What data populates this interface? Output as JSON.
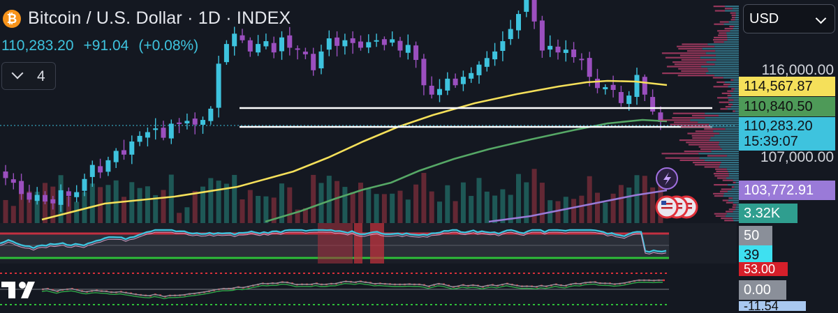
{
  "header": {
    "title": "Bitcoin / U.S. Dollar · 1D · INDEX",
    "last_price": "110,283.20",
    "change": "+91.04",
    "change_pct": "(+0.08%)",
    "indicators_count": "4"
  },
  "toolbar": {
    "currency": "USD"
  },
  "colors": {
    "bg": "#141821",
    "up": "#26a69a",
    "down": "#8e44ad",
    "candle_up": "#3ec3de",
    "candle_down": "#9b4fbf",
    "ma_fast": "#f5e05a",
    "ma_mid": "#56a866",
    "ma_slow": "#9a7ad8",
    "rsi_line": "#3ec3de",
    "accent_red": "#e0303a"
  },
  "price_axis": {
    "ticks": [
      "116,000.00",
      "107,000.00",
      "103,772.91"
    ],
    "badges": {
      "ma_fast": "114,567.87",
      "ma_mid": "110,840.50",
      "last": "110,283.20",
      "countdown": "15:39:07",
      "ma_slow": "103,772.91",
      "volume": "3.32K"
    }
  },
  "rsi_axis": {
    "upper": "50",
    "value": "39"
  },
  "macd_axis": {
    "upper": "53.00",
    "zero": "0.00",
    "lower": "-11.54"
  },
  "chart_data": {
    "type": "candlestick",
    "title": "Bitcoin / U.S. Dollar · 1D · INDEX",
    "y_axis_ticks": [
      116000,
      107000
    ],
    "horizontal_lines": [
      111380,
      110350
    ],
    "moving_averages": [
      {
        "name": "ma_fast",
        "last": 114567.87
      },
      {
        "name": "ma_mid",
        "last": 110840.5
      },
      {
        "name": "ma_slow",
        "last": 103772.91
      }
    ],
    "last_volume": "3.32K",
    "closes": [
      104300,
      103800,
      102600,
      102000,
      102500,
      101800,
      101600,
      103000,
      102400,
      102800,
      104200,
      105700,
      104900,
      106200,
      107200,
      106800,
      108200,
      108800,
      109200,
      109600,
      108600,
      110100,
      110200,
      110400,
      110000,
      110500,
      111700,
      116500,
      118600,
      119700,
      119000,
      117800,
      118600,
      118900,
      117700,
      119300,
      118200,
      118000,
      117500,
      115800,
      117800,
      119200,
      118400,
      119000,
      118700,
      118200,
      118800,
      119000,
      118500,
      119100,
      117900,
      118500,
      116900,
      114200,
      113200,
      113800,
      114900,
      114200,
      115100,
      115500,
      116400,
      117100,
      117800,
      118900,
      120200,
      121800,
      123600,
      121000,
      117900,
      118400,
      117700,
      118000,
      117200,
      116900,
      115100,
      113900,
      114000,
      113700,
      112300,
      113100,
      115300,
      113200,
      111400,
      110283
    ]
  }
}
